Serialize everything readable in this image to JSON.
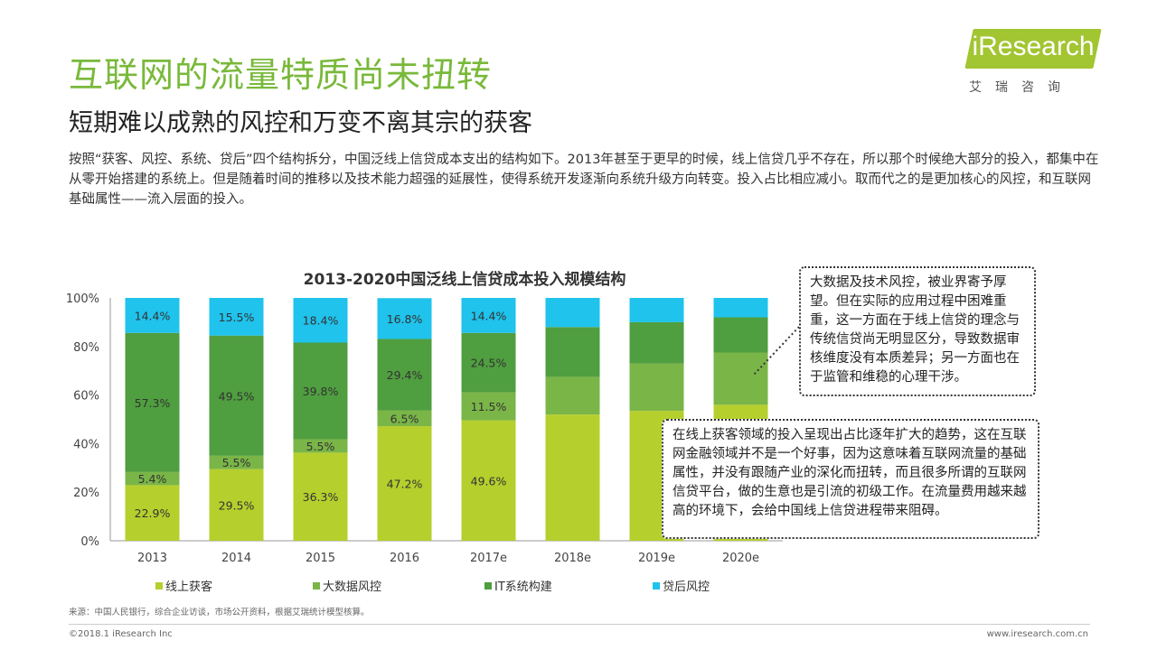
{
  "header": {
    "title": "互联网的流量特质尚未扭转",
    "subtitle": "短期难以成熟的风控和万变不离其宗的获客",
    "body": "按照“获客、风控、系统、贷后”四个结构拆分，中国泛线上信贷成本支出的结构如下。2013年甚至于更早的时候，线上信贷几乎不存在，所以那个时候绝大部分的投入，都集中在从零开始搭建的系统上。但是随着时间的推移以及技术能力超强的延展性，使得系统开发逐渐向系统升级方向转变。投入占比相应减小。取而代之的是更加核心的风控，和互联网基础属性——流入层面的投入。"
  },
  "logo": {
    "wordmark": "iResearch",
    "chinese": "艾瑞咨询"
  },
  "chart_data": {
    "type": "bar",
    "stacked": true,
    "title": "2013-2020中国泛线上信贷成本投入规模结构",
    "categories": [
      "2013",
      "2014",
      "2015",
      "2016",
      "2017e",
      "2018e",
      "2019e",
      "2020e"
    ],
    "ylim": [
      0,
      100
    ],
    "yticks": [
      "0%",
      "20%",
      "40%",
      "60%",
      "80%",
      "100%"
    ],
    "legend_position": "bottom",
    "series": [
      {
        "name": "线上获客",
        "color": "#b5cf2d",
        "values": [
          22.9,
          29.5,
          36.3,
          47.2,
          49.6,
          52.0,
          53.5,
          56.0
        ],
        "labels": [
          "22.9%",
          "29.5%",
          "36.3%",
          "47.2%",
          "49.6%",
          "",
          "",
          ""
        ]
      },
      {
        "name": "大数据风控",
        "color": "#7ab548",
        "values": [
          5.4,
          5.5,
          5.5,
          6.5,
          11.5,
          15.5,
          19.5,
          21.5
        ],
        "labels": [
          "5.4%",
          "5.5%",
          "5.5%",
          "6.5%",
          "11.5%",
          "",
          "",
          ""
        ]
      },
      {
        "name": "IT系统构建",
        "color": "#4f9e3f",
        "values": [
          57.3,
          49.5,
          39.8,
          29.4,
          24.5,
          20.5,
          17.0,
          14.5
        ],
        "labels": [
          "57.3%",
          "49.5%",
          "39.8%",
          "29.4%",
          "24.5%",
          "",
          "",
          ""
        ]
      },
      {
        "name": "贷后风控",
        "color": "#1fc3ec",
        "values": [
          14.4,
          15.5,
          18.4,
          16.8,
          14.4,
          12.0,
          10.0,
          8.0
        ],
        "labels": [
          "14.4%",
          "15.5%",
          "18.4%",
          "16.8%",
          "14.4%",
          "",
          "",
          ""
        ]
      }
    ]
  },
  "callouts": {
    "risk": "大数据及技术风控，被业界寄予厚望。但在实际的应用过程中困难重重，这一方面在于线上信贷的理念与传统信贷尚无明显区分，导致数据审核维度没有本质差异；另一方面也在于监管和维稳的心理干涉。",
    "acquisition": "在线上获客领域的投入呈现出占比逐年扩大的趋势，这在互联网金融领域并不是一个好事，因为这意味着互联网流量的基础属性，并没有跟随产业的深化而扭转，而且很多所谓的互联网信贷平台，做的生意也是引流的初级工作。在流量费用越来越高的环境下，会给中国线上信贷进程带来阻碍。"
  },
  "footer": {
    "source": "来源：中国人民银行，综合企业访谈，市场公开资料，根据艾瑞统计模型核算。",
    "copyright": "©2018.1 iResearch Inc",
    "website": "www.iresearch.com.cn"
  }
}
